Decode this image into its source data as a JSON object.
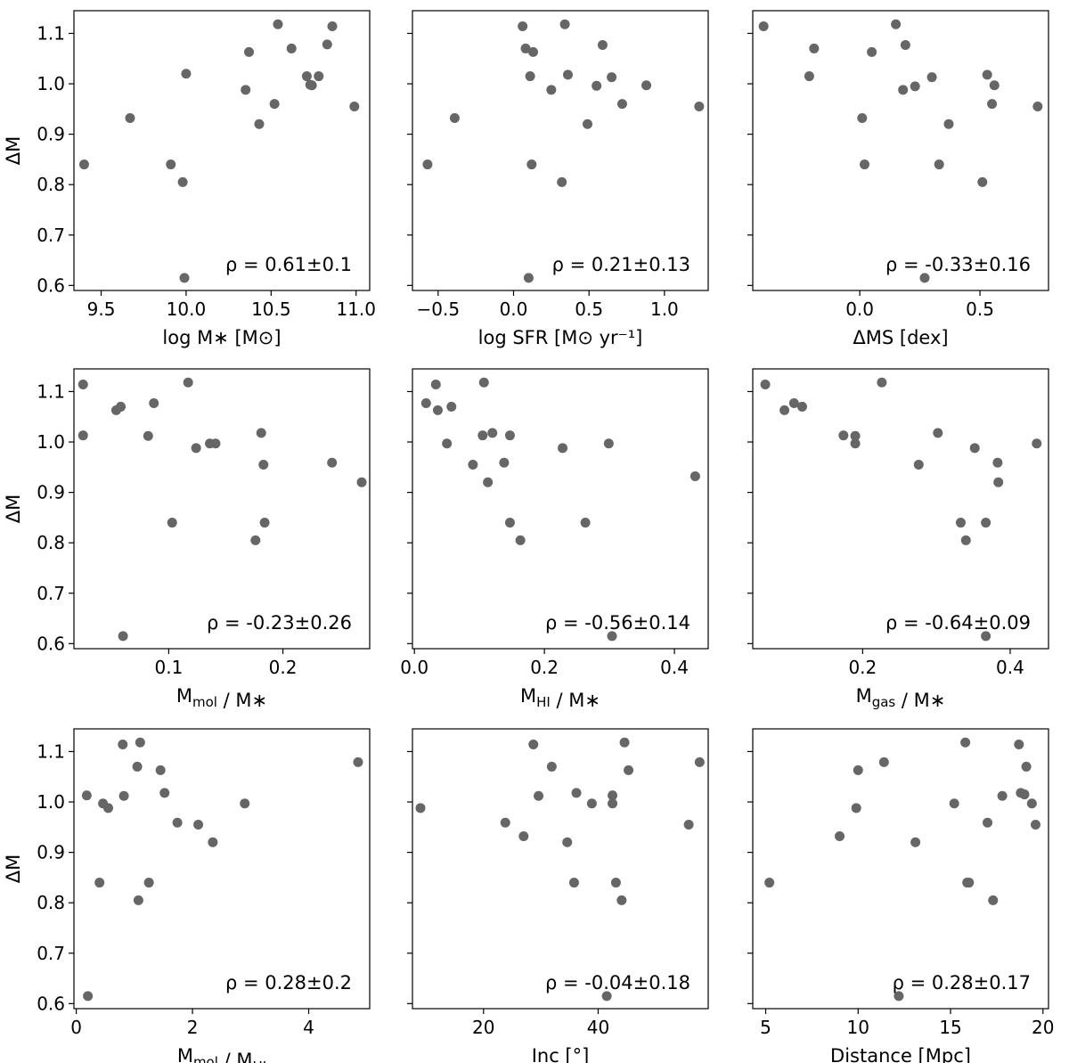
{
  "figure": {
    "shared_ylabel": "ΔM",
    "marker_color": "#666666"
  },
  "chart_data": [
    {
      "type": "scatter",
      "xlabel": "log M∗ [M⊙]",
      "ylabel": "ΔM",
      "xlim": [
        9.34,
        11.08
      ],
      "ylim": [
        0.59,
        1.145
      ],
      "xticks": [
        9.5,
        10.0,
        10.5,
        11.0
      ],
      "xtick_labels": [
        "9.5",
        "10.0",
        "10.5",
        "11.0"
      ],
      "yticks": [
        0.6,
        0.7,
        0.8,
        0.9,
        1.0,
        1.1
      ],
      "ytick_labels": [
        "0.6",
        "0.7",
        "0.8",
        "0.9",
        "1.0",
        "1.1"
      ],
      "annotation": "ρ = 0.61±0.1",
      "x": [
        9.4,
        9.67,
        9.91,
        9.98,
        9.99,
        10.0,
        10.35,
        10.37,
        10.43,
        10.52,
        10.54,
        10.62,
        10.71,
        10.73,
        10.74,
        10.78,
        10.83,
        10.86,
        10.99
      ],
      "y": [
        0.84,
        0.932,
        0.84,
        0.805,
        0.615,
        1.02,
        0.988,
        1.063,
        0.92,
        0.96,
        1.118,
        1.07,
        1.015,
        0.998,
        0.997,
        1.015,
        1.078,
        1.114,
        0.955
      ]
    },
    {
      "type": "scatter",
      "xlabel": "log SFR [M⊙ yr⁻¹]",
      "ylabel": "",
      "xlim": [
        -0.67,
        1.29
      ],
      "ylim": [
        0.59,
        1.145
      ],
      "xticks": [
        -0.5,
        0.0,
        0.5,
        1.0
      ],
      "xtick_labels": [
        "−0.5",
        "0.0",
        "0.5",
        "1.0"
      ],
      "yticks": [
        0.6,
        0.7,
        0.8,
        0.9,
        1.0,
        1.1
      ],
      "ytick_labels": [
        "",
        "",
        "",
        "",
        "",
        ""
      ],
      "annotation": "ρ = 0.21±0.13",
      "x": [
        -0.57,
        -0.39,
        0.06,
        0.08,
        0.1,
        0.11,
        0.12,
        0.13,
        0.25,
        0.32,
        0.34,
        0.36,
        0.49,
        0.55,
        0.59,
        0.65,
        0.72,
        0.88,
        1.23
      ],
      "y": [
        0.84,
        0.932,
        1.114,
        1.07,
        0.615,
        1.015,
        0.84,
        1.063,
        0.988,
        0.805,
        1.118,
        1.018,
        0.92,
        0.996,
        1.077,
        1.013,
        0.96,
        0.997,
        0.955
      ]
    },
    {
      "type": "scatter",
      "xlabel": "ΔMS [dex]",
      "ylabel": "",
      "xlim": [
        -0.445,
        0.785
      ],
      "ylim": [
        0.59,
        1.145
      ],
      "xticks": [
        0.0,
        0.5
      ],
      "xtick_labels": [
        "0.0",
        "0.5"
      ],
      "yticks": [
        0.6,
        0.7,
        0.8,
        0.9,
        1.0,
        1.1
      ],
      "ytick_labels": [
        "",
        "",
        "",
        "",
        "",
        ""
      ],
      "annotation": "ρ = -0.33±0.16",
      "x": [
        -0.4,
        -0.19,
        -0.21,
        0.01,
        0.02,
        0.05,
        0.15,
        0.18,
        0.19,
        0.23,
        0.27,
        0.3,
        0.33,
        0.37,
        0.51,
        0.53,
        0.55,
        0.56,
        0.74
      ],
      "y": [
        1.114,
        1.07,
        1.015,
        0.932,
        0.84,
        1.063,
        1.118,
        0.988,
        1.077,
        0.995,
        0.615,
        1.013,
        0.84,
        0.92,
        0.805,
        1.018,
        0.96,
        0.997,
        0.955
      ]
    },
    {
      "type": "scatter",
      "xlabel": "Mmol / M∗",
      "ylabel": "ΔM",
      "xlim": [
        0.017,
        0.276
      ],
      "ylim": [
        0.59,
        1.145
      ],
      "xticks": [
        0.1,
        0.2
      ],
      "xtick_labels": [
        "0.1",
        "0.2"
      ],
      "yticks": [
        0.6,
        0.7,
        0.8,
        0.9,
        1.0,
        1.1
      ],
      "ytick_labels": [
        "0.6",
        "0.7",
        "0.8",
        "0.9",
        "1.0",
        "1.1"
      ],
      "annotation": "ρ = -0.23±0.26",
      "x": [
        0.025,
        0.025,
        0.054,
        0.058,
        0.06,
        0.082,
        0.087,
        0.103,
        0.117,
        0.124,
        0.136,
        0.141,
        0.176,
        0.181,
        0.183,
        0.184,
        0.243,
        0.269
      ],
      "y": [
        1.114,
        1.013,
        1.063,
        1.07,
        0.615,
        1.012,
        1.077,
        0.84,
        1.118,
        0.988,
        0.997,
        0.997,
        0.805,
        1.018,
        0.955,
        0.84,
        0.959,
        0.92
      ]
    },
    {
      "type": "scatter",
      "xlabel": "MHI / M∗",
      "ylabel": "",
      "xlim": [
        -0.003,
        0.452
      ],
      "ylim": [
        0.59,
        1.145
      ],
      "xticks": [
        0.0,
        0.2,
        0.4
      ],
      "xtick_labels": [
        "0.0",
        "0.2",
        "0.4"
      ],
      "yticks": [
        0.6,
        0.7,
        0.8,
        0.9,
        1.0,
        1.1
      ],
      "ytick_labels": [
        "",
        "",
        "",
        "",
        "",
        ""
      ],
      "annotation": "ρ = -0.56±0.14",
      "x": [
        0.018,
        0.033,
        0.036,
        0.05,
        0.057,
        0.09,
        0.105,
        0.107,
        0.113,
        0.12,
        0.138,
        0.147,
        0.147,
        0.163,
        0.228,
        0.263,
        0.299,
        0.304,
        0.432
      ],
      "y": [
        1.077,
        1.114,
        1.063,
        0.997,
        1.07,
        0.955,
        1.013,
        1.118,
        0.92,
        1.018,
        0.959,
        1.013,
        0.84,
        0.805,
        0.988,
        0.84,
        0.997,
        0.615,
        0.932
      ]
    },
    {
      "type": "scatter",
      "xlabel": "Mgas / M∗",
      "ylabel": "",
      "xlim": [
        0.051,
        0.452
      ],
      "ylim": [
        0.59,
        1.145
      ],
      "xticks": [
        0.2,
        0.4
      ],
      "xtick_labels": [
        "0.2",
        "0.4"
      ],
      "yticks": [
        0.6,
        0.7,
        0.8,
        0.9,
        1.0,
        1.1
      ],
      "ytick_labels": [
        "",
        "",
        "",
        "",
        "",
        ""
      ],
      "annotation": "ρ = -0.64±0.09",
      "x": [
        0.068,
        0.094,
        0.107,
        0.118,
        0.174,
        0.19,
        0.19,
        0.226,
        0.276,
        0.302,
        0.333,
        0.34,
        0.352,
        0.367,
        0.367,
        0.383,
        0.384,
        0.436
      ],
      "y": [
        1.114,
        1.063,
        1.077,
        1.07,
        1.013,
        1.012,
        0.997,
        1.118,
        0.955,
        1.018,
        0.84,
        0.805,
        0.988,
        0.84,
        0.615,
        0.959,
        0.92,
        0.997
      ]
    },
    {
      "type": "scatter",
      "xlabel": "Mmol / MHI",
      "ylabel": "ΔM",
      "xlim": [
        -0.04,
        5.05
      ],
      "ylim": [
        0.59,
        1.145
      ],
      "xticks": [
        0,
        2,
        4
      ],
      "xtick_labels": [
        "0",
        "2",
        "4"
      ],
      "yticks": [
        0.6,
        0.7,
        0.8,
        0.9,
        1.0,
        1.1
      ],
      "ytick_labels": [
        "0.6",
        "0.7",
        "0.8",
        "0.9",
        "1.0",
        "1.1"
      ],
      "annotation": "ρ = 0.28±0.2",
      "x": [
        0.18,
        0.2,
        0.4,
        0.46,
        0.55,
        0.8,
        0.82,
        1.05,
        1.07,
        1.1,
        1.25,
        1.45,
        1.52,
        1.74,
        2.1,
        2.35,
        2.9,
        4.85
      ],
      "y": [
        1.013,
        0.615,
        0.84,
        0.997,
        0.988,
        1.114,
        1.012,
        1.07,
        0.805,
        1.118,
        0.84,
        1.063,
        1.018,
        0.959,
        0.955,
        0.92,
        0.997,
        1.079
      ]
    },
    {
      "type": "scatter",
      "xlabel": "Inc [°]",
      "ylabel": "",
      "xlim": [
        7.6,
        59.2
      ],
      "ylim": [
        0.59,
        1.145
      ],
      "xticks": [
        20,
        40
      ],
      "xtick_labels": [
        "20",
        "40"
      ],
      "yticks": [
        0.6,
        0.7,
        0.8,
        0.9,
        1.0,
        1.1
      ],
      "ytick_labels": [
        "",
        "",
        "",
        "",
        "",
        ""
      ],
      "annotation": "ρ = -0.04±0.18",
      "x": [
        9,
        23.8,
        27,
        28.7,
        29.6,
        31.9,
        34.6,
        35.8,
        36.2,
        38.9,
        41.5,
        42.5,
        42.5,
        43.1,
        44.1,
        44.6,
        45.3,
        55.8,
        57.7
      ],
      "y": [
        0.988,
        0.959,
        0.932,
        1.114,
        1.012,
        1.07,
        0.92,
        0.84,
        1.018,
        0.997,
        0.615,
        1.013,
        0.997,
        0.84,
        0.805,
        1.118,
        1.063,
        0.955,
        1.079
      ]
    },
    {
      "type": "scatter",
      "xlabel": "Distance [Mpc]",
      "ylabel": "",
      "xlim": [
        4.3,
        20.3
      ],
      "ylim": [
        0.59,
        1.145
      ],
      "xticks": [
        5,
        10,
        15,
        20
      ],
      "xtick_labels": [
        "5",
        "10",
        "15",
        "20"
      ],
      "yticks": [
        0.6,
        0.7,
        0.8,
        0.9,
        1.0,
        1.1
      ],
      "ytick_labels": [
        "",
        "",
        "",
        "",
        "",
        ""
      ],
      "annotation": "ρ = 0.28±0.17",
      "x": [
        5.2,
        9,
        9.9,
        10,
        11.4,
        12.2,
        13.1,
        15.2,
        15.8,
        15.9,
        16,
        17,
        17.3,
        17.8,
        18.7,
        18.8,
        19,
        19.1,
        19.4,
        19.6
      ],
      "y": [
        0.84,
        0.932,
        0.988,
        1.063,
        1.079,
        0.615,
        0.92,
        0.997,
        1.118,
        0.84,
        0.84,
        0.959,
        0.805,
        1.012,
        1.114,
        1.018,
        1.015,
        1.07,
        0.997,
        0.955
      ]
    }
  ]
}
